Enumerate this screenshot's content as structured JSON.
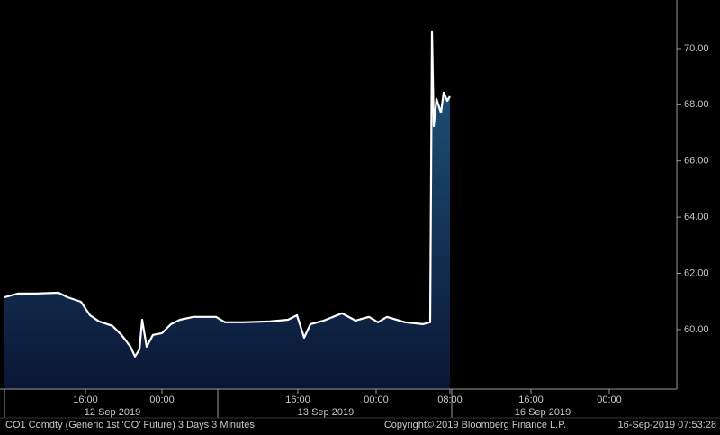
{
  "chart_data": {
    "type": "area",
    "x": [
      0,
      1.5,
      3.5,
      6,
      7,
      8.5,
      9.5,
      10.5,
      12,
      13,
      14,
      14.5,
      15,
      15.3,
      15.8,
      16.5,
      17.5,
      18.5,
      19.5,
      21,
      23.5,
      24.5,
      26.5,
      29.5,
      31.5,
      32.5,
      33.3,
      34,
      35.5,
      37.5,
      39,
      40.5,
      41.5,
      42.5,
      44.5,
      46.5,
      47.3,
      47.5,
      47.7,
      48,
      48.5,
      48.8,
      49.2,
      49.5
    ],
    "series": [
      {
        "name": "CO1 Comdty",
        "color": "#ffffff",
        "fill": "#1f5a80",
        "values": [
          61.15,
          61.28,
          61.28,
          61.31,
          61.15,
          60.99,
          60.51,
          60.29,
          60.13,
          59.81,
          59.39,
          59.04,
          59.29,
          60.35,
          59.39,
          59.81,
          59.87,
          60.19,
          60.35,
          60.45,
          60.45,
          60.26,
          60.26,
          60.29,
          60.35,
          60.51,
          59.71,
          60.19,
          60.32,
          60.58,
          60.32,
          60.45,
          60.26,
          60.45,
          60.26,
          60.19,
          60.26,
          70.61,
          67.24,
          68.21,
          67.72,
          68.43,
          68.14,
          68.3
        ]
      }
    ],
    "xlim": [
      0,
      74.7
    ],
    "xticks": [
      {
        "value": 9.0,
        "label": "16:00"
      },
      {
        "value": 17.5,
        "label": "00:00"
      },
      {
        "value": 32.6,
        "label": "16:00"
      },
      {
        "value": 41.3,
        "label": "00:00"
      },
      {
        "value": 49.5,
        "label": "08:00"
      },
      {
        "value": 58.5,
        "label": "16:00"
      },
      {
        "value": 67.2,
        "label": "00:00"
      }
    ],
    "date_ticks": [
      {
        "value": 12.0,
        "label": "12 Sep 2019"
      },
      {
        "value": 35.7,
        "label": "13 Sep 2019"
      },
      {
        "value": 59.8,
        "label": "16 Sep 2019"
      }
    ],
    "date_separators": [
      23.7,
      49.7
    ],
    "ylim": [
      57.88,
      71.73
    ],
    "yticks": [
      {
        "value": 60,
        "label": "60.00"
      },
      {
        "value": 62,
        "label": "62.00"
      },
      {
        "value": 64,
        "label": "64.00"
      },
      {
        "value": 66,
        "label": "66.00"
      },
      {
        "value": 68,
        "label": "68.00"
      },
      {
        "value": 70,
        "label": "70.00"
      }
    ],
    "footer": [
      "CO1 Comdty (Generic 1st 'CO' Future) 3 Days 3 Minutes",
      "Copyright© 2019 Bloomberg Finance L.P.",
      "16-Sep-2019 07:53:28"
    ]
  }
}
